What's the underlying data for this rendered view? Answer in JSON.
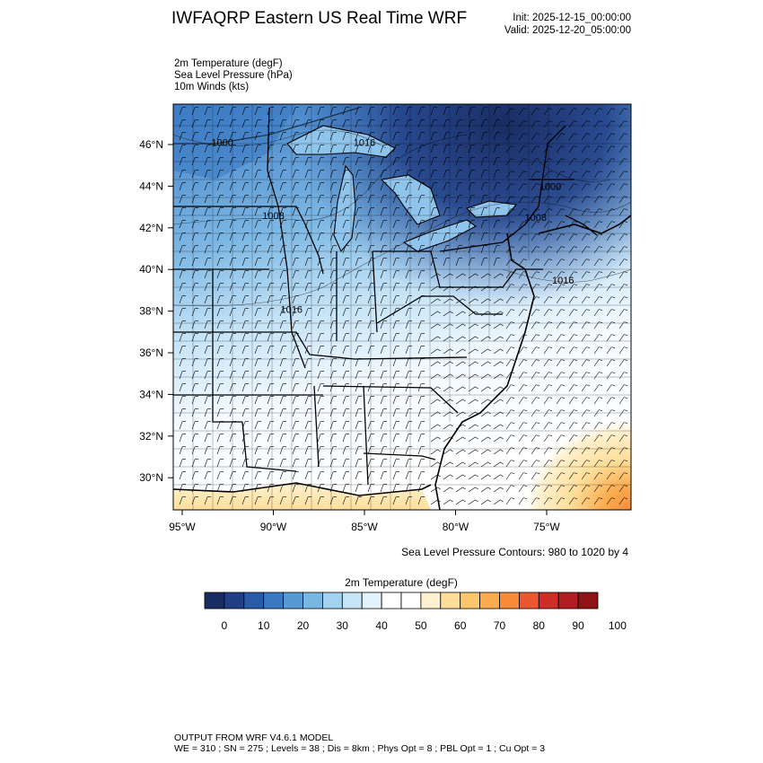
{
  "header": {
    "title": "IWFAQRP Eastern US Real Time WRF",
    "init": "Init: 2025-12-15_00:00:00",
    "valid": "Valid: 2025-12-20_05:00:00"
  },
  "fields": [
    "2m Temperature   (degF)",
    "Sea Level Pressure   (hPa)",
    "10m Winds   (kts)"
  ],
  "map": {
    "lat_ticks": [
      {
        "lat": 46,
        "label": "46°N"
      },
      {
        "lat": 44,
        "label": "44°N"
      },
      {
        "lat": 42,
        "label": "42°N"
      },
      {
        "lat": 40,
        "label": "40°N"
      },
      {
        "lat": 38,
        "label": "38°N"
      },
      {
        "lat": 36,
        "label": "36°N"
      },
      {
        "lat": 34,
        "label": "34°N"
      },
      {
        "lat": 32,
        "label": "32°N"
      },
      {
        "lat": 30,
        "label": "30°N"
      }
    ],
    "lon_ticks": [
      {
        "lon": -95,
        "label": "95°W"
      },
      {
        "lon": -90,
        "label": "90°W"
      },
      {
        "lon": -85,
        "label": "85°W"
      },
      {
        "lon": -80,
        "label": "80°W"
      },
      {
        "lon": -75,
        "label": "75°W"
      }
    ],
    "pressure_labels": [
      {
        "text": "1000",
        "lon": -92.8,
        "lat": 46.1
      },
      {
        "text": "1016",
        "lon": -85.0,
        "lat": 46.1
      },
      {
        "text": "1008",
        "lon": -90.0,
        "lat": 42.6
      },
      {
        "text": "1016",
        "lon": -89.0,
        "lat": 38.1
      },
      {
        "text": "1000",
        "lon": -74.8,
        "lat": 44.0
      },
      {
        "text": "1008",
        "lon": -75.6,
        "lat": 42.5
      },
      {
        "text": "1016",
        "lon": -74.1,
        "lat": 39.5
      }
    ]
  },
  "contour_note": "Sea Level Pressure Contours: 980 to 1020 by 4",
  "colorbar": {
    "title": "2m Temperature  (degF)",
    "colors": [
      "#1a2d63",
      "#213f87",
      "#2a5ba8",
      "#3b78c2",
      "#5799d2",
      "#79b7e2",
      "#a2d2f0",
      "#c6e6f8",
      "#e3f3fc",
      "#ffffff",
      "#ffffff",
      "#fff1cf",
      "#ffde9a",
      "#fdc66a",
      "#fcac4e",
      "#f78b3a",
      "#e9582e",
      "#cf2d25",
      "#b21d22",
      "#8e1317"
    ],
    "labels": [
      "0",
      "10",
      "20",
      "30",
      "40",
      "50",
      "60",
      "70",
      "80",
      "90",
      "100"
    ]
  },
  "footer": {
    "line1": "OUTPUT FROM WRF V4.6.1 MODEL",
    "line2": "WE = 310 ; SN = 275 ; Levels = 38 ; Dis = 8km ; Phys Opt = 8 ; PBL Opt = 1 ; Cu Opt = 3"
  }
}
